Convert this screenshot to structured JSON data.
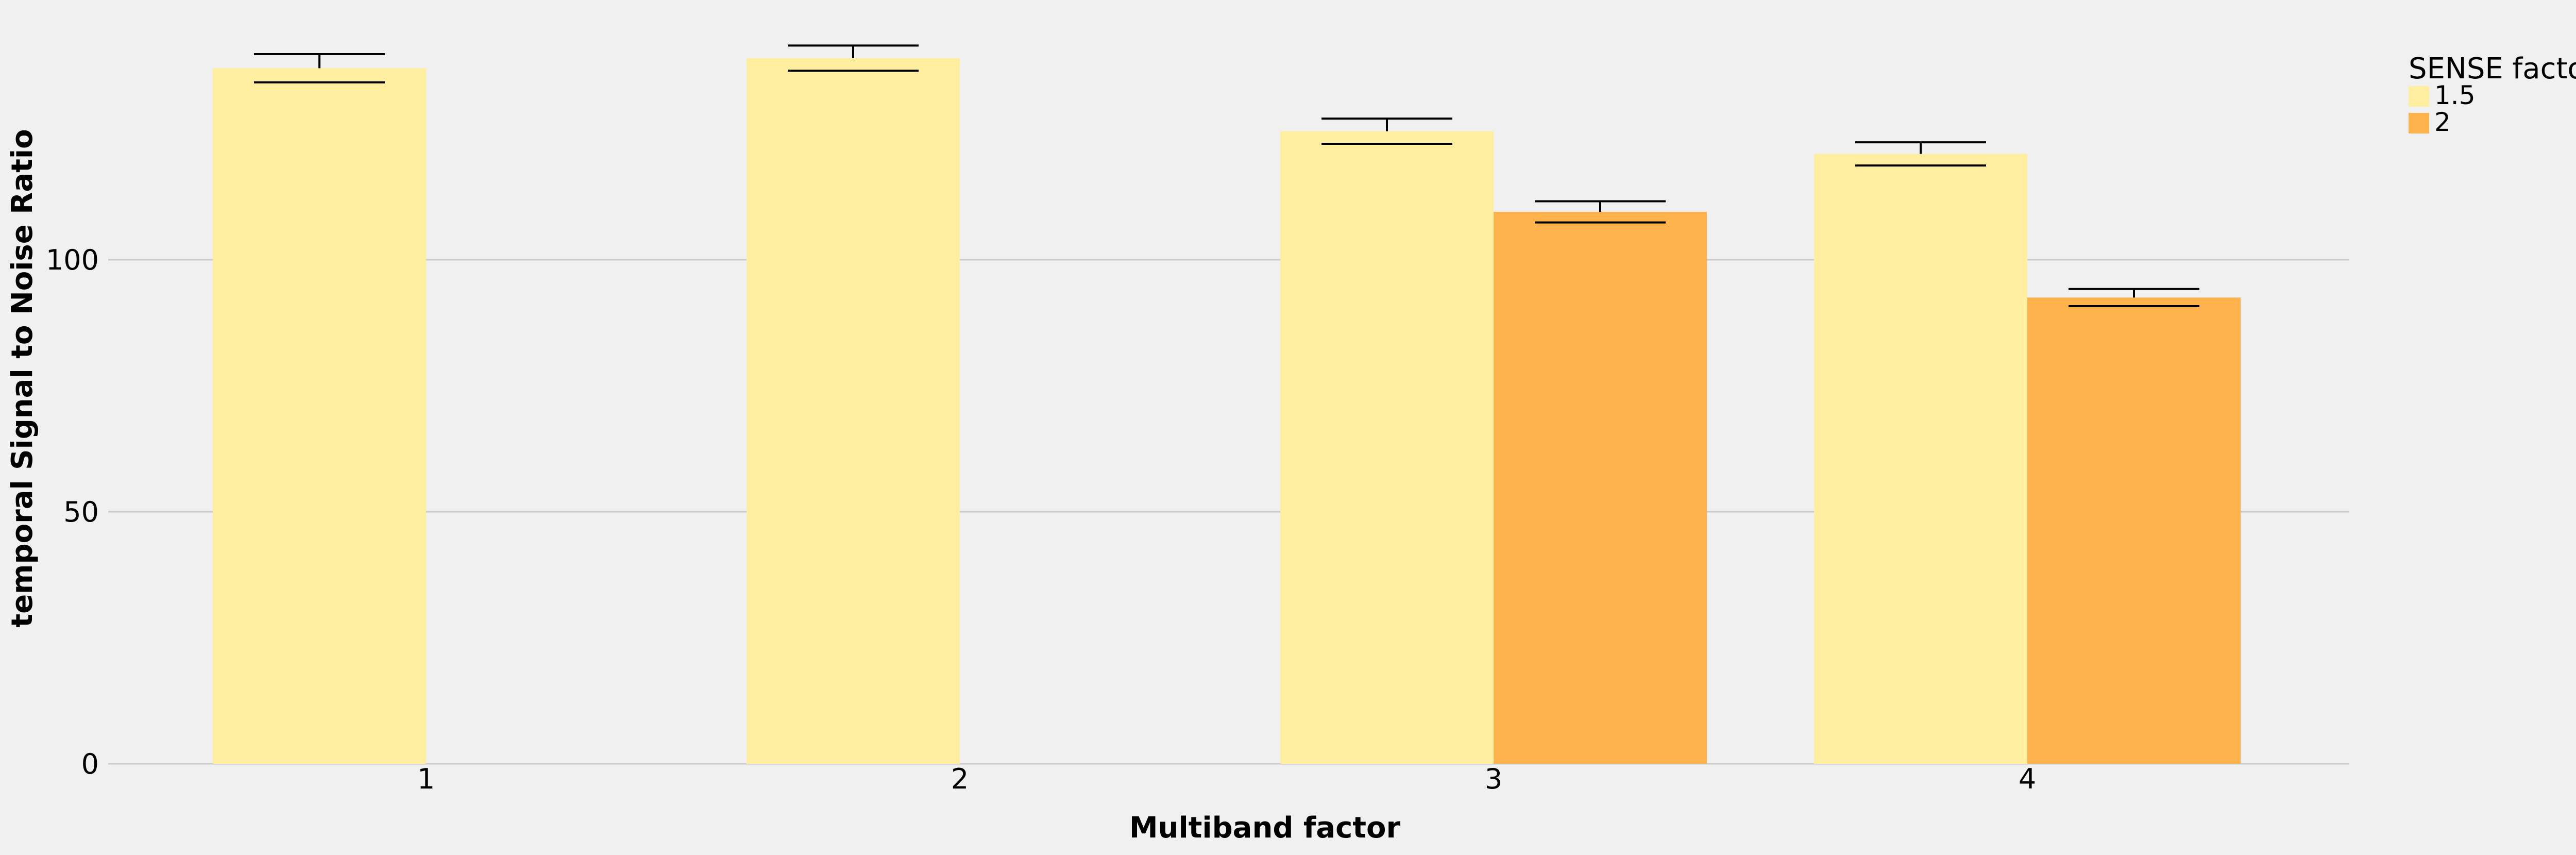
{
  "chart_data": {
    "type": "bar",
    "title": "",
    "xlabel": "Multiband factor",
    "ylabel": "temporal Signal to Noise Ratio",
    "categories": [
      "1",
      "2",
      "3",
      "4"
    ],
    "ylim": [
      0,
      150
    ],
    "yticks": [
      0,
      50,
      100
    ],
    "grid": "horizontal",
    "legend": {
      "title": "SENSE factor",
      "placement": "top-right outside"
    },
    "series": [
      {
        "name": "1.5",
        "color": "#ffeda0",
        "values": [
          138,
          140,
          125.5,
          121
        ],
        "error": [
          2.8,
          2.5,
          2.5,
          2.3
        ]
      },
      {
        "name": "2",
        "color": "#feb24c",
        "values": [
          null,
          null,
          109.5,
          92.5
        ],
        "error": [
          null,
          null,
          2.1,
          1.7
        ]
      }
    ]
  }
}
